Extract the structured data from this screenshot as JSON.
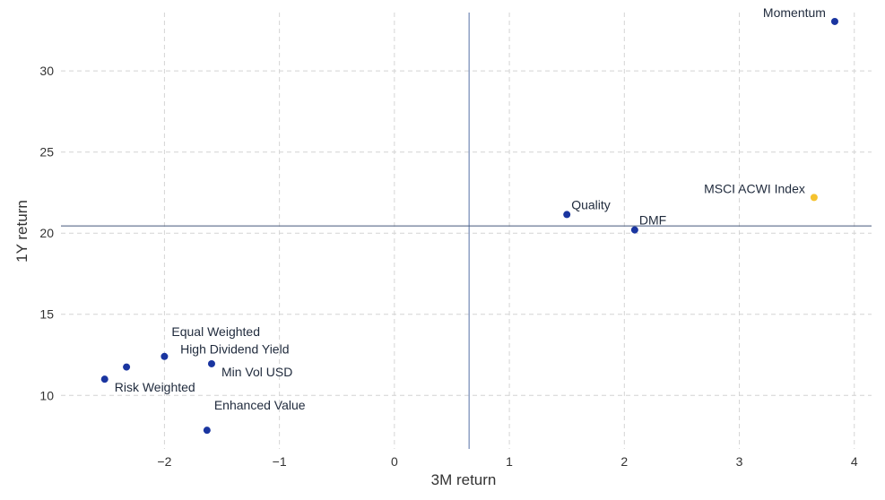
{
  "chart_data": {
    "type": "scatter",
    "xlabel": "3M return",
    "ylabel": "1Y return",
    "xlim": [
      -2.9,
      4.15
    ],
    "ylim": [
      6.7,
      33.6
    ],
    "xticks": [
      -2,
      -1,
      0,
      1,
      2,
      3,
      4
    ],
    "xtick_labels": [
      "−2",
      "−1",
      "0",
      "1",
      "2",
      "3",
      "4"
    ],
    "yticks": [
      10,
      15,
      20,
      25,
      30
    ],
    "ytick_labels": [
      "10",
      "15",
      "20",
      "25",
      "30"
    ],
    "grid": true,
    "reference_lines": {
      "x": 0.65,
      "y": 20.45
    },
    "colors": {
      "factor": "#1a35a0",
      "index": "#f5c22e",
      "hline": "#44577a",
      "vline": "#8ea0c4"
    },
    "points": [
      {
        "label": "Momentum",
        "x": 3.83,
        "y": 33.05,
        "kind": "factor",
        "anchor": "left-above"
      },
      {
        "label": "MSCI ACWI Index",
        "x": 3.65,
        "y": 22.2,
        "kind": "index",
        "anchor": "left-above"
      },
      {
        "label": "Quality",
        "x": 1.5,
        "y": 21.15,
        "kind": "factor",
        "anchor": "right-above"
      },
      {
        "label": "DMF",
        "x": 2.09,
        "y": 20.2,
        "kind": "factor",
        "anchor": "right-above"
      },
      {
        "label": "Equal Weighted",
        "x": -2.0,
        "y": 12.4,
        "kind": "factor",
        "anchor": "right-above-far"
      },
      {
        "label": "High Dividend Yield",
        "x": -2.33,
        "y": 11.75,
        "kind": "factor",
        "anchor": "right-above-far2"
      },
      {
        "label": "Min Vol USD",
        "x": -1.59,
        "y": 11.95,
        "kind": "factor",
        "anchor": "right-below"
      },
      {
        "label": "Risk Weighted",
        "x": -2.52,
        "y": 11.0,
        "kind": "factor",
        "anchor": "right-below"
      },
      {
        "label": "Enhanced Value",
        "x": -1.63,
        "y": 7.85,
        "kind": "factor",
        "anchor": "right-above-far"
      }
    ]
  }
}
